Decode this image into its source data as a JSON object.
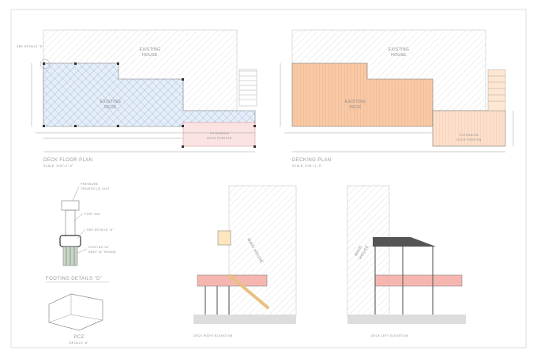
{
  "floor_plan": {
    "see_details": "SEE DETAILS \"D\"",
    "house": [
      "EXISTING",
      "HOUSE"
    ],
    "deck": [
      "EXISTING",
      "DECK"
    ],
    "extension": [
      "EXTENSION",
      "DECK PORTION"
    ],
    "title": "DECK FLOOR PLAN",
    "scale": "SCALE: 3/16\"=1'-0\""
  },
  "decking_plan": {
    "house": [
      "EXISTING",
      "HOUSE"
    ],
    "deck": [
      "EXISTING",
      "DECK"
    ],
    "extension": [
      "EXTENSION",
      "DECK PORTION"
    ],
    "title": "DECKING PLAN",
    "scale": "SCALE: 3/16\"=1'-0\""
  },
  "footing": {
    "callouts": [
      "PRESSURE",
      "TREATED (2) 2x12",
      "POST 6x6",
      "SEE DETAILS \"A\"",
      "FOOTING 16\"",
      "DEEP 32\" ROUND"
    ],
    "title": "FOOTING DETAILS \"D\""
  },
  "bracket": {
    "model": "PCZ",
    "title": "DETAILS \"A\""
  },
  "right_elevation": {
    "house": "MAIN HOUSE",
    "title": "DECK RIGHT ELEVATION"
  },
  "left_elevation": {
    "house": [
      "MAIN",
      "HOUSE"
    ],
    "title": "DECK LEFT ELEVATION"
  }
}
